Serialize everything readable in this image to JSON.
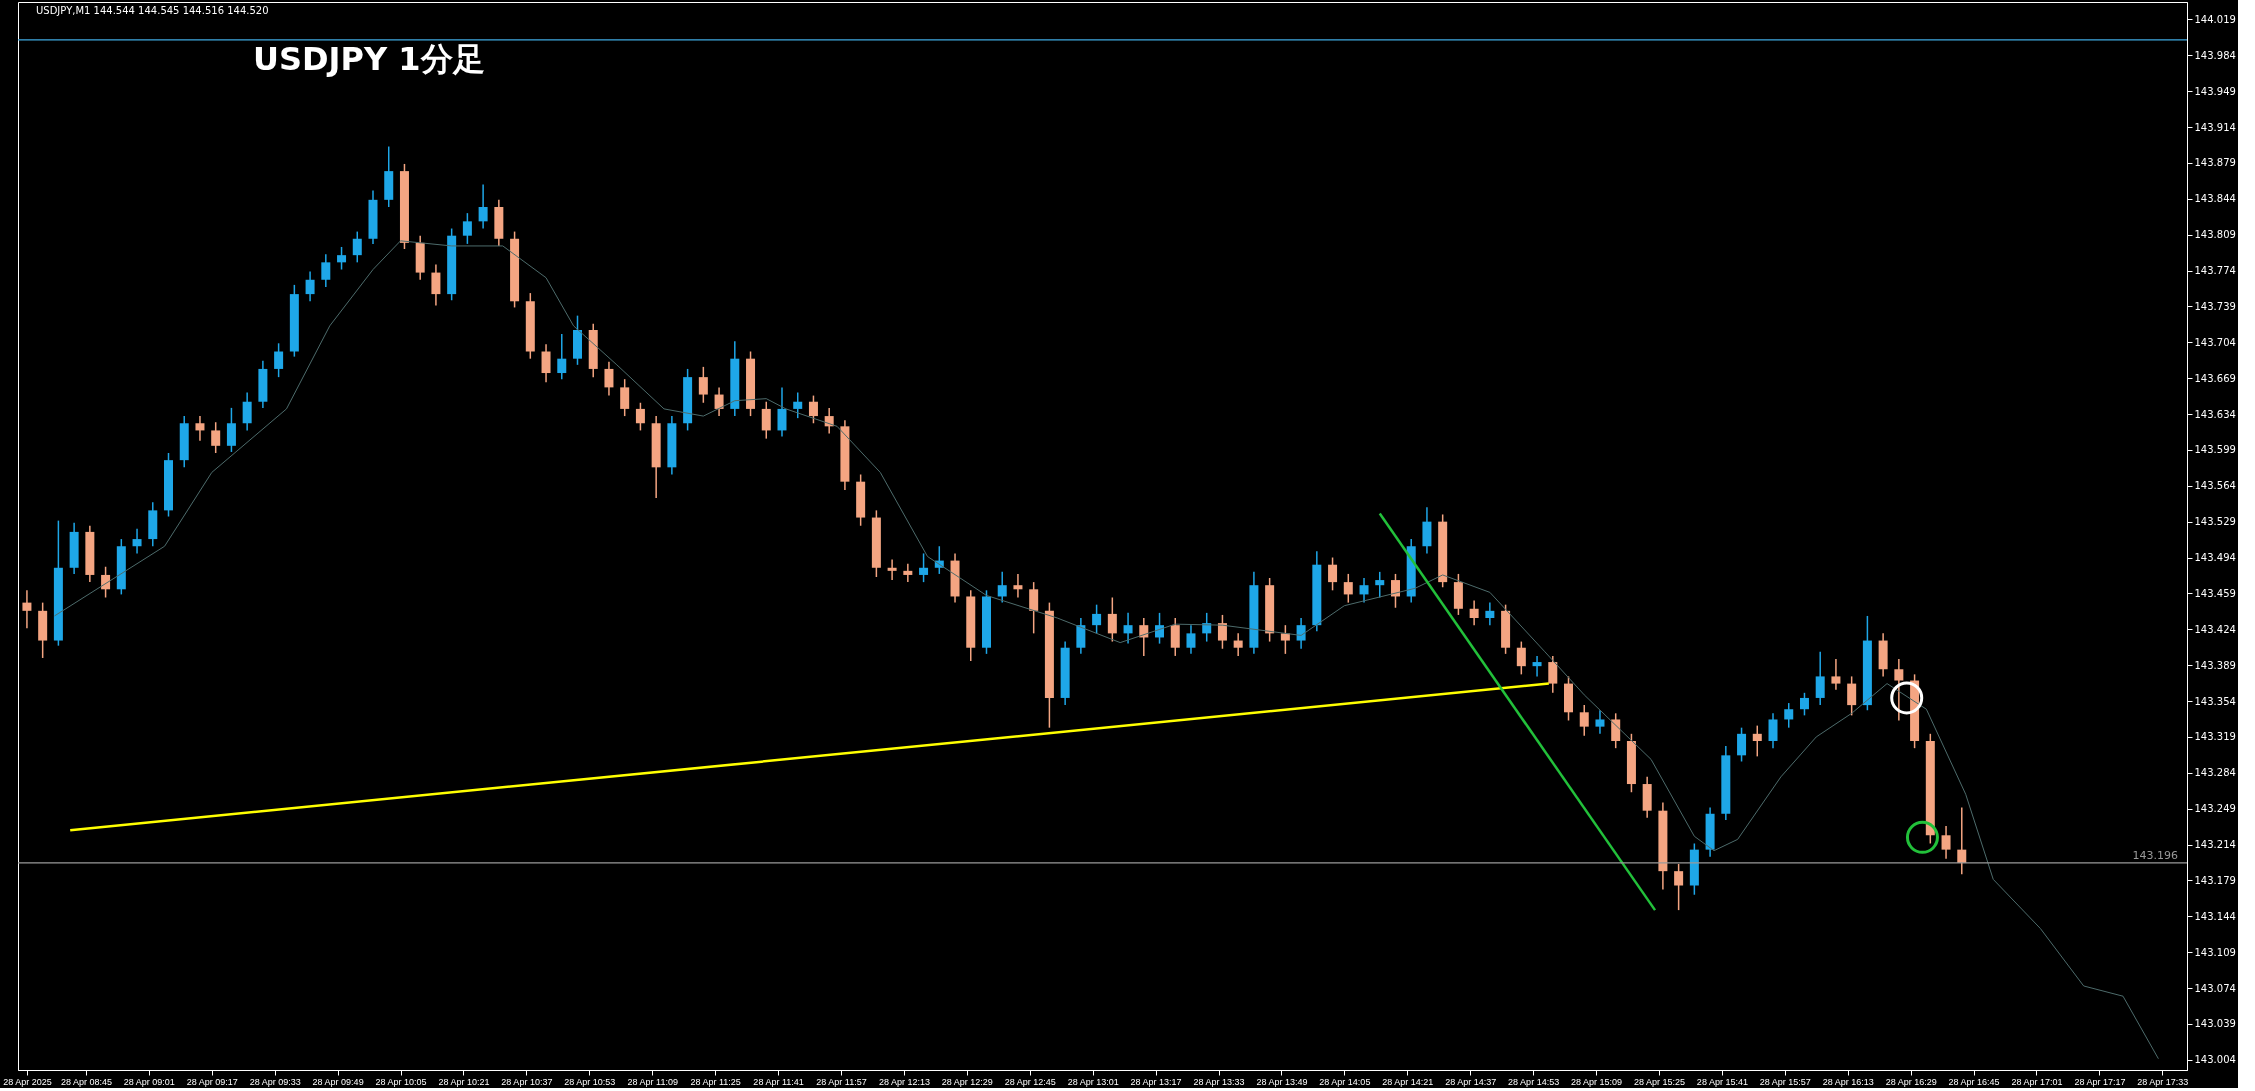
{
  "chart_data": {
    "type": "candlestick",
    "title": "USDJPY  1分足",
    "annotations": [
      "USDJPY,M1  144.544 144.545 144.516 144.520"
    ],
    "xlim": [
      "2025-04-28T08:29",
      "2025-04-28T17:38"
    ],
    "ylim": [
      142.994,
      144.036
    ],
    "xticks": [
      {
        "value": "2025-04-28T08:30",
        "label": "28 Apr 2025"
      },
      {
        "value": "2025-04-28T08:45",
        "label": "28 Apr 08:45"
      },
      {
        "value": "2025-04-28T09:01",
        "label": "28 Apr 09:01"
      },
      {
        "value": "2025-04-28T09:17",
        "label": "28 Apr 09:17"
      },
      {
        "value": "2025-04-28T09:33",
        "label": "28 Apr 09:33"
      },
      {
        "value": "2025-04-28T09:49",
        "label": "28 Apr 09:49"
      },
      {
        "value": "2025-04-28T10:05",
        "label": "28 Apr 10:05"
      },
      {
        "value": "2025-04-28T10:21",
        "label": "28 Apr 10:21"
      },
      {
        "value": "2025-04-28T10:37",
        "label": "28 Apr 10:37"
      },
      {
        "value": "2025-04-28T10:53",
        "label": "28 Apr 10:53"
      },
      {
        "value": "2025-04-28T11:09",
        "label": "28 Apr 11:09"
      },
      {
        "value": "2025-04-28T11:25",
        "label": "28 Apr 11:25"
      },
      {
        "value": "2025-04-28T11:41",
        "label": "28 Apr 11:41"
      },
      {
        "value": "2025-04-28T11:57",
        "label": "28 Apr 11:57"
      },
      {
        "value": "2025-04-28T12:13",
        "label": "28 Apr 12:13"
      },
      {
        "value": "2025-04-28T12:29",
        "label": "28 Apr 12:29"
      },
      {
        "value": "2025-04-28T12:45",
        "label": "28 Apr 12:45"
      },
      {
        "value": "2025-04-28T13:01",
        "label": "28 Apr 13:01"
      },
      {
        "value": "2025-04-28T13:17",
        "label": "28 Apr 13:17"
      },
      {
        "value": "2025-04-28T13:33",
        "label": "28 Apr 13:33"
      },
      {
        "value": "2025-04-28T13:49",
        "label": "28 Apr 13:49"
      },
      {
        "value": "2025-04-28T14:05",
        "label": "28 Apr 14:05"
      },
      {
        "value": "2025-04-28T14:21",
        "label": "28 Apr 14:21"
      },
      {
        "value": "2025-04-28T14:37",
        "label": "28 Apr 14:37"
      },
      {
        "value": "2025-04-28T14:53",
        "label": "28 Apr 14:53"
      },
      {
        "value": "2025-04-28T15:09",
        "label": "28 Apr 15:09"
      },
      {
        "value": "2025-04-28T15:25",
        "label": "28 Apr 15:25"
      },
      {
        "value": "2025-04-28T15:41",
        "label": "28 Apr 15:41"
      },
      {
        "value": "2025-04-28T15:57",
        "label": "28 Apr 15:57"
      },
      {
        "value": "2025-04-28T16:13",
        "label": "28 Apr 16:13"
      },
      {
        "value": "2025-04-28T16:29",
        "label": "28 Apr 16:29"
      },
      {
        "value": "2025-04-28T16:45",
        "label": "28 Apr 16:45"
      },
      {
        "value": "2025-04-28T17:01",
        "label": "28 Apr 17:01"
      },
      {
        "value": "2025-04-28T17:17",
        "label": "28 Apr 17:17"
      },
      {
        "value": "2025-04-28T17:33",
        "label": "28 Apr 17:33"
      }
    ],
    "yticks": [
      143.004,
      143.039,
      143.074,
      143.109,
      143.144,
      143.179,
      143.214,
      143.249,
      143.284,
      143.319,
      143.354,
      143.389,
      143.424,
      143.459,
      143.494,
      143.529,
      143.564,
      143.599,
      143.634,
      143.669,
      143.704,
      143.739,
      143.774,
      143.809,
      143.844,
      143.879,
      143.914,
      143.949,
      143.984,
      144.019
    ],
    "grid": false,
    "ref_lines": [
      {
        "axis": "y",
        "value": 143.999,
        "color": "#3fa9e0"
      },
      {
        "axis": "y",
        "value": 143.196,
        "label": "143.196",
        "color": "#9a9a9a"
      }
    ],
    "series": [
      {
        "type": "candlestick",
        "color": "#1ea7e8",
        "x": [
          "2025-04-28T08:38",
          "2025-04-28T08:42",
          "2025-04-28T08:54",
          "2025-04-28T08:58",
          "2025-04-28T09:02",
          "2025-04-28T09:06",
          "2025-04-28T09:10",
          "2025-04-28T09:22",
          "2025-04-28T09:26",
          "2025-04-28T09:30",
          "2025-04-28T09:34",
          "2025-04-28T09:38",
          "2025-04-28T09:42",
          "2025-04-28T09:46",
          "2025-04-28T09:50",
          "2025-04-28T09:54",
          "2025-04-28T09:58",
          "2025-04-28T10:02",
          "2025-04-28T10:18",
          "2025-04-28T10:22",
          "2025-04-28T10:26",
          "2025-04-28T10:46",
          "2025-04-28T10:50",
          "2025-04-28T11:14",
          "2025-04-28T11:18",
          "2025-04-28T11:30",
          "2025-04-28T11:42",
          "2025-04-28T11:46",
          "2025-04-28T12:18",
          "2025-04-28T12:22",
          "2025-04-28T12:34",
          "2025-04-28T12:38",
          "2025-04-28T12:54",
          "2025-04-28T12:58",
          "2025-04-28T13:02",
          "2025-04-28T13:10",
          "2025-04-28T13:18",
          "2025-04-28T13:26",
          "2025-04-28T13:30",
          "2025-04-28T13:42",
          "2025-04-28T13:54",
          "2025-04-28T13:58",
          "2025-04-28T14:10",
          "2025-04-28T14:14",
          "2025-04-28T14:22",
          "2025-04-28T14:26",
          "2025-04-28T14:42",
          "2025-04-28T14:54",
          "2025-04-28T15:10",
          "2025-04-28T15:34",
          "2025-04-28T15:38",
          "2025-04-28T15:42",
          "2025-04-28T15:46",
          "2025-04-28T15:54",
          "2025-04-28T15:58",
          "2025-04-28T16:02",
          "2025-04-28T16:06",
          "2025-04-28T16:18"
        ],
        "ohlc": [
          [
            143.413,
            143.53,
            143.408,
            143.484
          ],
          [
            143.484,
            143.528,
            143.478,
            143.519
          ],
          [
            143.463,
            143.512,
            143.458,
            143.505
          ],
          [
            143.505,
            143.522,
            143.498,
            143.512
          ],
          [
            143.512,
            143.548,
            143.505,
            143.54
          ],
          [
            143.54,
            143.596,
            143.534,
            143.589
          ],
          [
            143.589,
            143.632,
            143.582,
            143.625
          ],
          [
            143.603,
            143.64,
            143.597,
            143.625
          ],
          [
            143.625,
            143.655,
            143.618,
            143.646
          ],
          [
            143.646,
            143.686,
            143.64,
            143.678
          ],
          [
            143.678,
            143.703,
            143.67,
            143.695
          ],
          [
            143.695,
            143.76,
            143.69,
            143.751
          ],
          [
            143.751,
            143.773,
            143.744,
            143.765
          ],
          [
            143.765,
            143.79,
            143.758,
            143.782
          ],
          [
            143.782,
            143.797,
            143.775,
            143.789
          ],
          [
            143.789,
            143.812,
            143.782,
            143.805
          ],
          [
            143.805,
            143.852,
            143.8,
            143.843
          ],
          [
            143.843,
            143.895,
            143.836,
            143.871
          ],
          [
            143.751,
            143.815,
            143.745,
            143.808
          ],
          [
            143.808,
            143.83,
            143.8,
            143.822
          ],
          [
            143.822,
            143.858,
            143.815,
            143.836
          ],
          [
            143.674,
            143.712,
            143.668,
            143.688
          ],
          [
            143.688,
            143.73,
            143.682,
            143.716
          ],
          [
            143.582,
            143.632,
            143.575,
            143.625
          ],
          [
            143.625,
            143.678,
            143.618,
            143.67
          ],
          [
            143.639,
            143.705,
            143.632,
            143.688
          ],
          [
            143.618,
            143.66,
            143.612,
            143.639
          ],
          [
            143.639,
            143.655,
            143.63,
            143.646
          ],
          [
            143.477,
            143.498,
            143.47,
            143.484
          ],
          [
            143.484,
            143.505,
            143.478,
            143.491
          ],
          [
            143.406,
            143.462,
            143.4,
            143.456
          ],
          [
            143.456,
            143.48,
            143.45,
            143.467
          ],
          [
            143.357,
            143.412,
            143.35,
            143.406
          ],
          [
            143.406,
            143.435,
            143.4,
            143.428
          ],
          [
            143.428,
            143.448,
            143.42,
            143.439
          ],
          [
            143.42,
            143.44,
            143.41,
            143.428
          ],
          [
            143.416,
            143.44,
            143.41,
            143.428
          ],
          [
            143.406,
            143.428,
            143.4,
            143.42
          ],
          [
            143.42,
            143.44,
            143.412,
            143.43
          ],
          [
            143.406,
            143.48,
            143.4,
            143.467
          ],
          [
            143.413,
            143.435,
            143.405,
            143.428
          ],
          [
            143.428,
            143.5,
            143.422,
            143.487
          ],
          [
            143.458,
            143.474,
            143.45,
            143.467
          ],
          [
            143.467,
            143.48,
            143.455,
            143.472
          ],
          [
            143.456,
            143.512,
            143.45,
            143.505
          ],
          [
            143.505,
            143.543,
            143.498,
            143.529
          ],
          [
            143.435,
            143.45,
            143.428,
            143.442
          ],
          [
            143.388,
            143.398,
            143.378,
            143.392
          ],
          [
            143.329,
            143.345,
            143.322,
            143.336
          ],
          [
            143.174,
            143.215,
            143.165,
            143.209
          ],
          [
            143.209,
            143.25,
            143.202,
            143.244
          ],
          [
            143.244,
            143.31,
            143.238,
            143.301
          ],
          [
            143.301,
            143.328,
            143.295,
            143.322
          ],
          [
            143.315,
            143.342,
            143.308,
            143.336
          ],
          [
            143.336,
            143.352,
            143.328,
            143.346
          ],
          [
            143.346,
            143.362,
            143.34,
            143.357
          ],
          [
            143.357,
            143.402,
            143.35,
            143.378
          ],
          [
            143.35,
            143.437,
            143.345,
            143.413
          ]
        ]
      },
      {
        "type": "candlestick",
        "color": "#f4a582",
        "x": [
          "2025-04-28T08:30",
          "2025-04-28T08:34",
          "2025-04-28T08:46",
          "2025-04-28T08:50",
          "2025-04-28T09:14",
          "2025-04-28T09:18",
          "2025-04-28T10:06",
          "2025-04-28T10:10",
          "2025-04-28T10:14",
          "2025-04-28T10:30",
          "2025-04-28T10:34",
          "2025-04-28T10:38",
          "2025-04-28T10:42",
          "2025-04-28T10:54",
          "2025-04-28T10:58",
          "2025-04-28T11:02",
          "2025-04-28T11:06",
          "2025-04-28T11:10",
          "2025-04-28T11:22",
          "2025-04-28T11:26",
          "2025-04-28T11:34",
          "2025-04-28T11:38",
          "2025-04-28T11:50",
          "2025-04-28T11:54",
          "2025-04-28T11:58",
          "2025-04-28T12:02",
          "2025-04-28T12:06",
          "2025-04-28T12:10",
          "2025-04-28T12:14",
          "2025-04-28T12:26",
          "2025-04-28T12:30",
          "2025-04-28T12:42",
          "2025-04-28T12:46",
          "2025-04-28T12:50",
          "2025-04-28T13:06",
          "2025-04-28T13:14",
          "2025-04-28T13:22",
          "2025-04-28T13:34",
          "2025-04-28T13:38",
          "2025-04-28T13:46",
          "2025-04-28T13:50",
          "2025-04-28T14:02",
          "2025-04-28T14:06",
          "2025-04-28T14:18",
          "2025-04-28T14:30",
          "2025-04-28T14:34",
          "2025-04-28T14:38",
          "2025-04-28T14:46",
          "2025-04-28T14:50",
          "2025-04-28T14:58",
          "2025-04-28T15:02",
          "2025-04-28T15:06",
          "2025-04-28T15:14",
          "2025-04-28T15:18",
          "2025-04-28T15:22",
          "2025-04-28T15:26",
          "2025-04-28T15:30",
          "2025-04-28T15:50",
          "2025-04-28T16:10",
          "2025-04-28T16:14",
          "2025-04-28T16:22",
          "2025-04-28T16:26",
          "2025-04-28T16:30",
          "2025-04-28T16:34",
          "2025-04-28T16:38",
          "2025-04-28T16:42"
        ],
        "ohlc": [
          [
            143.45,
            143.462,
            143.425,
            143.442
          ],
          [
            143.442,
            143.45,
            143.396,
            143.413
          ],
          [
            143.519,
            143.525,
            143.47,
            143.477
          ],
          [
            143.477,
            143.485,
            143.455,
            143.463
          ],
          [
            143.625,
            143.632,
            143.608,
            143.618
          ],
          [
            143.618,
            143.626,
            143.596,
            143.603
          ],
          [
            143.871,
            143.878,
            143.795,
            143.801
          ],
          [
            143.801,
            143.808,
            143.765,
            143.772
          ],
          [
            143.772,
            143.78,
            143.74,
            143.751
          ],
          [
            143.836,
            143.843,
            143.798,
            143.805
          ],
          [
            143.805,
            143.812,
            143.738,
            143.744
          ],
          [
            143.744,
            143.752,
            143.688,
            143.695
          ],
          [
            143.695,
            143.702,
            143.665,
            143.674
          ],
          [
            143.716,
            143.722,
            143.67,
            143.678
          ],
          [
            143.678,
            143.685,
            143.652,
            143.66
          ],
          [
            143.66,
            143.668,
            143.632,
            143.639
          ],
          [
            143.639,
            143.645,
            143.618,
            143.625
          ],
          [
            143.625,
            143.632,
            143.552,
            143.582
          ],
          [
            143.67,
            143.68,
            143.645,
            143.653
          ],
          [
            143.653,
            143.66,
            143.632,
            143.639
          ],
          [
            143.688,
            143.695,
            143.632,
            143.639
          ],
          [
            143.639,
            143.646,
            143.61,
            143.618
          ],
          [
            143.646,
            143.652,
            143.625,
            143.632
          ],
          [
            143.632,
            143.64,
            143.615,
            143.622
          ],
          [
            143.622,
            143.628,
            143.56,
            143.568
          ],
          [
            143.568,
            143.575,
            143.525,
            143.533
          ],
          [
            143.533,
            143.54,
            143.475,
            143.484
          ],
          [
            143.484,
            143.492,
            143.472,
            143.481
          ],
          [
            143.481,
            143.488,
            143.47,
            143.477
          ],
          [
            143.491,
            143.498,
            143.45,
            143.456
          ],
          [
            143.456,
            143.462,
            143.393,
            143.406
          ],
          [
            143.467,
            143.478,
            143.455,
            143.463
          ],
          [
            143.463,
            143.47,
            143.42,
            143.442
          ],
          [
            143.442,
            143.45,
            143.328,
            143.357
          ],
          [
            143.439,
            143.455,
            143.412,
            143.42
          ],
          [
            143.428,
            143.435,
            143.398,
            143.416
          ],
          [
            143.428,
            143.435,
            143.398,
            143.406
          ],
          [
            143.43,
            143.438,
            143.405,
            143.413
          ],
          [
            143.413,
            143.42,
            143.398,
            143.406
          ],
          [
            143.467,
            143.474,
            143.412,
            143.42
          ],
          [
            143.42,
            143.428,
            143.4,
            143.413
          ],
          [
            143.487,
            143.494,
            143.462,
            143.47
          ],
          [
            143.47,
            143.478,
            143.45,
            143.458
          ],
          [
            143.472,
            143.478,
            143.445,
            143.456
          ],
          [
            143.529,
            143.536,
            143.465,
            143.47
          ],
          [
            143.47,
            143.478,
            143.438,
            143.444
          ],
          [
            143.444,
            143.452,
            143.428,
            143.435
          ],
          [
            143.442,
            143.448,
            143.4,
            143.406
          ],
          [
            143.406,
            143.412,
            143.38,
            143.388
          ],
          [
            143.392,
            143.398,
            143.362,
            143.371
          ],
          [
            143.371,
            143.378,
            143.335,
            143.343
          ],
          [
            143.343,
            143.35,
            143.32,
            143.329
          ],
          [
            143.336,
            143.342,
            143.308,
            143.315
          ],
          [
            143.315,
            143.322,
            143.265,
            143.273
          ],
          [
            143.273,
            143.28,
            143.24,
            143.247
          ],
          [
            143.247,
            143.255,
            143.17,
            143.188
          ],
          [
            143.188,
            143.195,
            143.15,
            143.174
          ],
          [
            143.322,
            143.33,
            143.3,
            143.315
          ],
          [
            143.378,
            143.395,
            143.365,
            143.371
          ],
          [
            143.371,
            143.378,
            143.34,
            143.35
          ],
          [
            143.413,
            143.42,
            143.378,
            143.385
          ],
          [
            143.385,
            143.395,
            143.335,
            143.374
          ],
          [
            143.374,
            143.38,
            143.308,
            143.315
          ],
          [
            143.315,
            143.322,
            143.215,
            143.223
          ],
          [
            143.223,
            143.232,
            143.2,
            143.209
          ],
          [
            143.209,
            143.25,
            143.185,
            143.196
          ]
        ]
      },
      {
        "type": "line",
        "color": "#4d6b6b",
        "marker": "none",
        "x": [
          "2025-04-28T08:37",
          "2025-04-28T09:05",
          "2025-04-28T09:17",
          "2025-04-28T09:36",
          "2025-04-28T09:47",
          "2025-04-28T09:58",
          "2025-04-28T10:05",
          "2025-04-28T10:18",
          "2025-04-28T10:31",
          "2025-04-28T10:42",
          "2025-04-28T10:49",
          "2025-04-28T11:00",
          "2025-04-28T11:12",
          "2025-04-28T11:22",
          "2025-04-28T11:30",
          "2025-04-28T11:38",
          "2025-04-28T11:43",
          "2025-04-28T11:56",
          "2025-04-28T12:07",
          "2025-04-28T12:19",
          "2025-04-28T12:34",
          "2025-04-28T12:52",
          "2025-04-28T13:08",
          "2025-04-28T13:22",
          "2025-04-28T13:34",
          "2025-04-28T13:54",
          "2025-04-28T14:05",
          "2025-04-28T14:23",
          "2025-04-28T14:30",
          "2025-04-28T14:42",
          "2025-04-28T14:56",
          "2025-04-28T15:06",
          "2025-04-28T15:23",
          "2025-04-28T15:34",
          "2025-04-28T15:39",
          "2025-04-28T15:45",
          "2025-04-28T15:56",
          "2025-04-28T16:05",
          "2025-04-28T16:14",
          "2025-04-28T16:23",
          "2025-04-28T16:33",
          "2025-04-28T16:43",
          "2025-04-28T16:50",
          "2025-04-28T17:02",
          "2025-04-28T17:13",
          "2025-04-28T17:23",
          "2025-04-28T17:32"
        ],
        "values": [
          143.437,
          143.505,
          143.577,
          143.639,
          143.72,
          143.775,
          143.803,
          143.798,
          143.798,
          143.767,
          143.72,
          143.682,
          143.639,
          143.632,
          143.647,
          143.649,
          143.639,
          143.622,
          143.577,
          143.495,
          143.457,
          143.435,
          143.411,
          143.429,
          143.428,
          143.418,
          143.447,
          143.464,
          143.477,
          143.46,
          143.402,
          143.36,
          143.297,
          143.222,
          143.208,
          143.219,
          143.28,
          143.319,
          143.342,
          143.371,
          143.346,
          143.263,
          143.18,
          143.132,
          143.076,
          143.066,
          143.005
        ]
      },
      {
        "type": "line",
        "color": "#ffff00",
        "marker": "none",
        "x": [
          "2025-04-28T08:41",
          "2025-04-28T14:57"
        ],
        "values": [
          143.228,
          143.371
        ]
      },
      {
        "type": "line",
        "color": "#22c03a",
        "marker": "none",
        "x": [
          "2025-04-28T14:14",
          "2025-04-28T15:24"
        ],
        "values": [
          143.537,
          143.15
        ]
      },
      {
        "type": "scatter",
        "marker": "circle",
        "color": "#ffffff",
        "x": [
          "2025-04-28T16:28"
        ],
        "values": [
          143.357
        ]
      },
      {
        "type": "scatter",
        "marker": "circle",
        "color": "#22c03a",
        "x": [
          "2025-04-28T16:32"
        ],
        "values": [
          143.221
        ]
      }
    ]
  }
}
